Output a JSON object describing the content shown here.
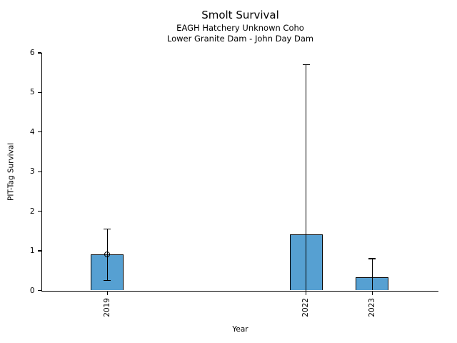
{
  "chart_data": {
    "type": "bar",
    "title": "Smolt Survival",
    "subtitle1": "EAGH Hatchery Unknown Coho",
    "subtitle2": "Lower Granite Dam - John Day Dam",
    "xlabel": "Year",
    "ylabel": "PIT-Tag Survival",
    "categories": [
      "2019",
      "2022",
      "2023"
    ],
    "x_years": [
      2019,
      2022,
      2023
    ],
    "values": [
      0.91,
      1.41,
      0.33
    ],
    "error_high": [
      1.55,
      5.7,
      0.8
    ],
    "error_low": [
      0.25,
      0,
      0
    ],
    "point_markers": [
      {
        "x": 2019,
        "y": 0.91
      }
    ],
    "ylim": [
      0,
      6
    ],
    "xlim": [
      2018,
      2024
    ],
    "yticks": [
      0,
      1,
      2,
      3,
      4,
      5,
      6
    ],
    "grid": false,
    "bar_color": "#56a0d2",
    "bar_edge_color": "#000000",
    "error_color": "#000000",
    "background_color": "#ffffff"
  }
}
